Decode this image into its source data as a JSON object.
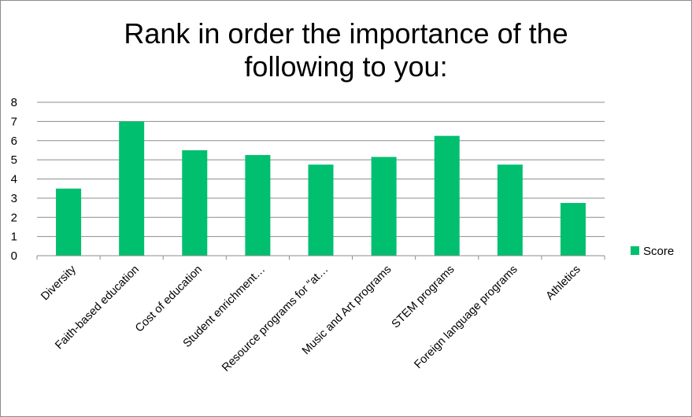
{
  "chart_data": {
    "type": "bar",
    "title_lines": [
      "Rank in order the importance of the",
      "following to you:"
    ],
    "categories": [
      "Diversity",
      "Faith-based education",
      "Cost of education",
      "Student enrichment…",
      "Resource programs for “at…",
      "Music and Art programs",
      "STEM programs",
      "Foreign language programs",
      "Athletics"
    ],
    "series": [
      {
        "name": "Score",
        "values": [
          3.5,
          7.0,
          5.5,
          5.25,
          4.75,
          5.15,
          6.25,
          4.75,
          2.75
        ]
      }
    ],
    "ylim": [
      0,
      8
    ],
    "yticks": [
      "0",
      "1",
      "2",
      "3",
      "4",
      "5",
      "6",
      "7",
      "8"
    ],
    "grid": true,
    "legend_position": "right",
    "bar_color": "#00bf6f",
    "grid_color": "#8c8c8c"
  }
}
